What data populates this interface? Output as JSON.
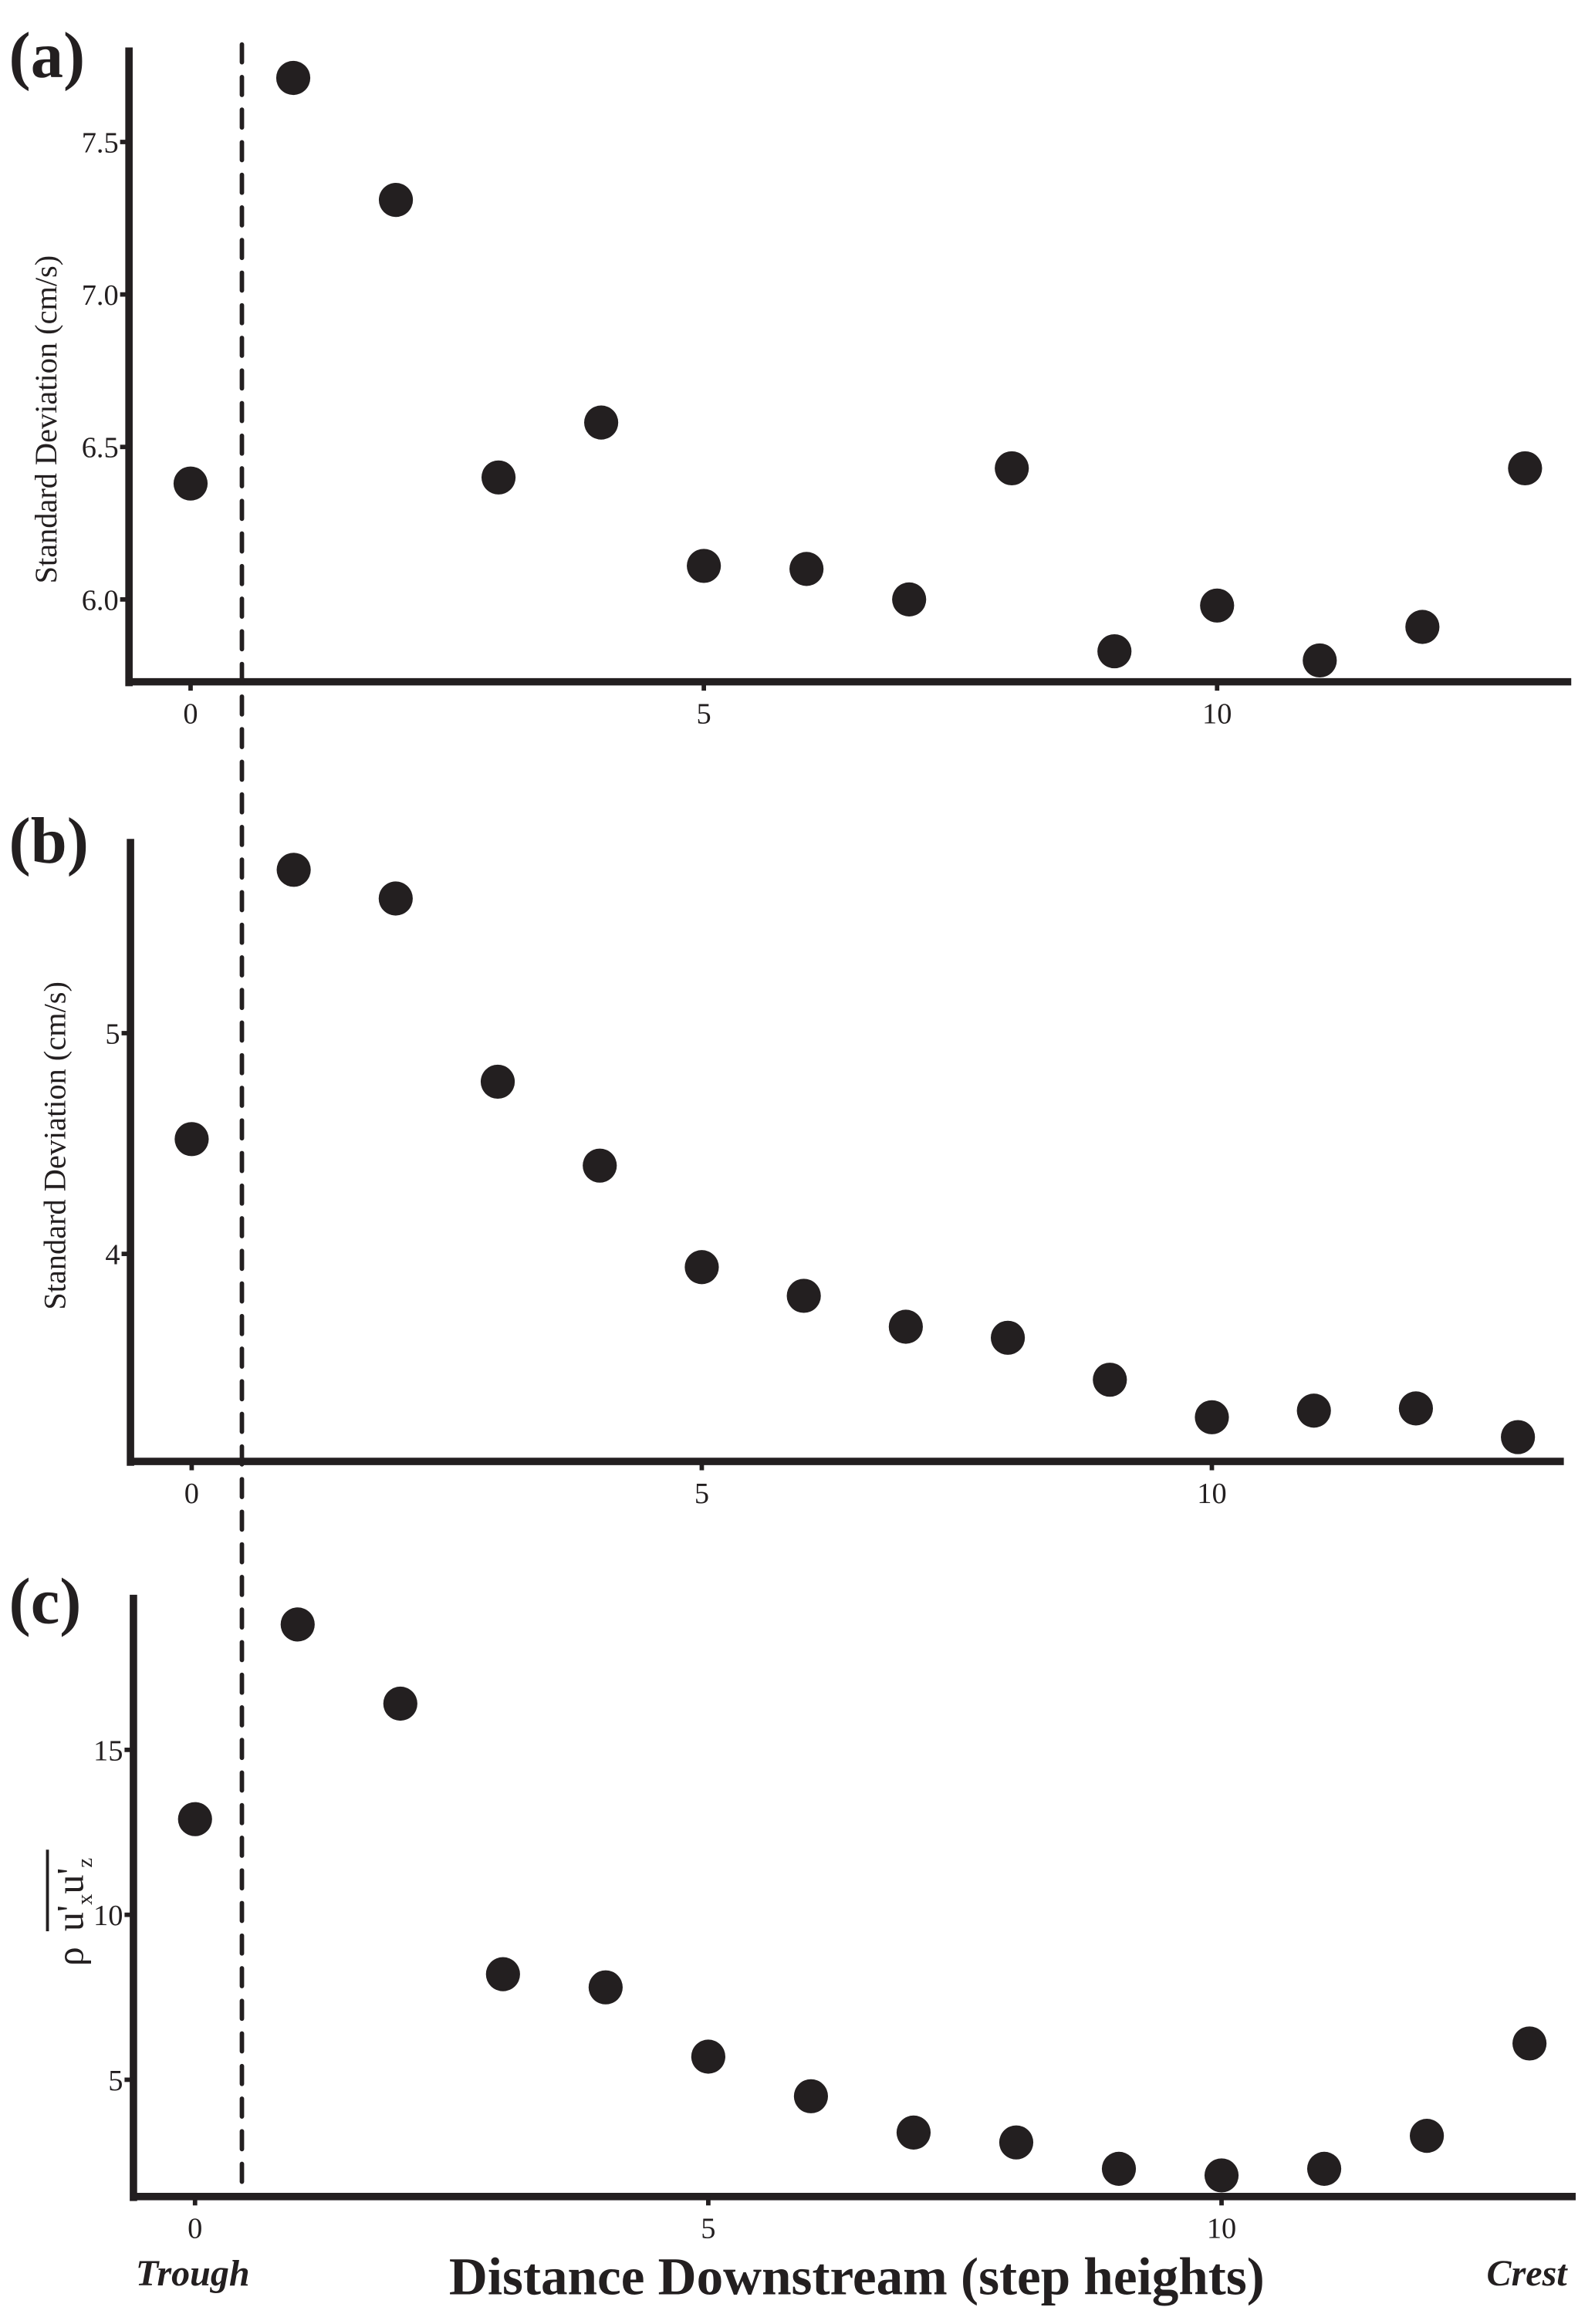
{
  "chart_data": [
    {
      "type": "scatter",
      "panel_label": "(a)",
      "ylabel": "Standard Deviation (cm/s)",
      "xlabel": "",
      "x": [
        0,
        1,
        2,
        3,
        4,
        5,
        6,
        7,
        8,
        9,
        10,
        11,
        12,
        13
      ],
      "y": [
        6.38,
        7.71,
        7.31,
        6.4,
        6.58,
        6.11,
        6.1,
        6.0,
        6.43,
        5.83,
        5.98,
        5.8,
        5.91,
        6.43
      ],
      "xlim": [
        -0.6,
        13.45
      ],
      "ylim": [
        5.73,
        7.81
      ],
      "xticks": [
        0,
        5,
        10
      ],
      "xtick_labels": [
        "0",
        "5",
        "10"
      ],
      "yticks": [
        6.0,
        6.5,
        7.0,
        7.5
      ],
      "ytick_labels": [
        "6.0",
        "6.5",
        "7.0",
        "7.5"
      ],
      "grid": false,
      "marker_color": "#231f20"
    },
    {
      "type": "scatter",
      "panel_label": "(b)",
      "ylabel": "Standard Deviation (cm/s)",
      "xlabel": "",
      "x": [
        0,
        1,
        2,
        3,
        4,
        5,
        6,
        7,
        8,
        9,
        10,
        11,
        12,
        13
      ],
      "y": [
        4.52,
        5.74,
        5.61,
        4.78,
        4.4,
        3.94,
        3.81,
        3.67,
        3.62,
        3.43,
        3.26,
        3.29,
        3.3,
        3.17
      ],
      "xlim": [
        -0.6,
        13.45
      ],
      "ylim": [
        3.06,
        5.88
      ],
      "xticks": [
        0,
        5,
        10
      ],
      "xtick_labels": [
        "0",
        "5",
        "10"
      ],
      "yticks": [
        4,
        5
      ],
      "ytick_labels": [
        "4",
        "5"
      ],
      "grid": false,
      "marker_color": "#231f20"
    },
    {
      "type": "scatter",
      "panel_label": "(c)",
      "ylabel": "ρ u'x u'z",
      "xlabel": "Distance Downstream (step heights)",
      "x": [
        0,
        1,
        2,
        3,
        4,
        5,
        6,
        7,
        8,
        9,
        10,
        11,
        12,
        13
      ],
      "y": [
        12.9,
        18.8,
        16.4,
        8.2,
        7.8,
        5.7,
        4.5,
        3.4,
        3.1,
        2.3,
        2.1,
        2.3,
        3.3,
        6.1
      ],
      "xlim": [
        -0.6,
        13.45
      ],
      "ylim": [
        1.46,
        19.7
      ],
      "xticks": [
        0,
        5,
        10
      ],
      "xtick_labels": [
        "0",
        "5",
        "10"
      ],
      "yticks": [
        5,
        10,
        15
      ],
      "ytick_labels": [
        "5",
        "10",
        "15"
      ],
      "grid": false,
      "marker_color": "#231f20"
    }
  ],
  "reference_line": {
    "x": 0.5,
    "style": "dashed"
  },
  "annotations": {
    "left": "Trough",
    "right": "Crest"
  },
  "ylabel_c_parts": {
    "rho": "ρ",
    "u1": "u",
    "p1": "'",
    "s1": "x",
    "u2": "u",
    "p2": "'",
    "s2": "z"
  }
}
